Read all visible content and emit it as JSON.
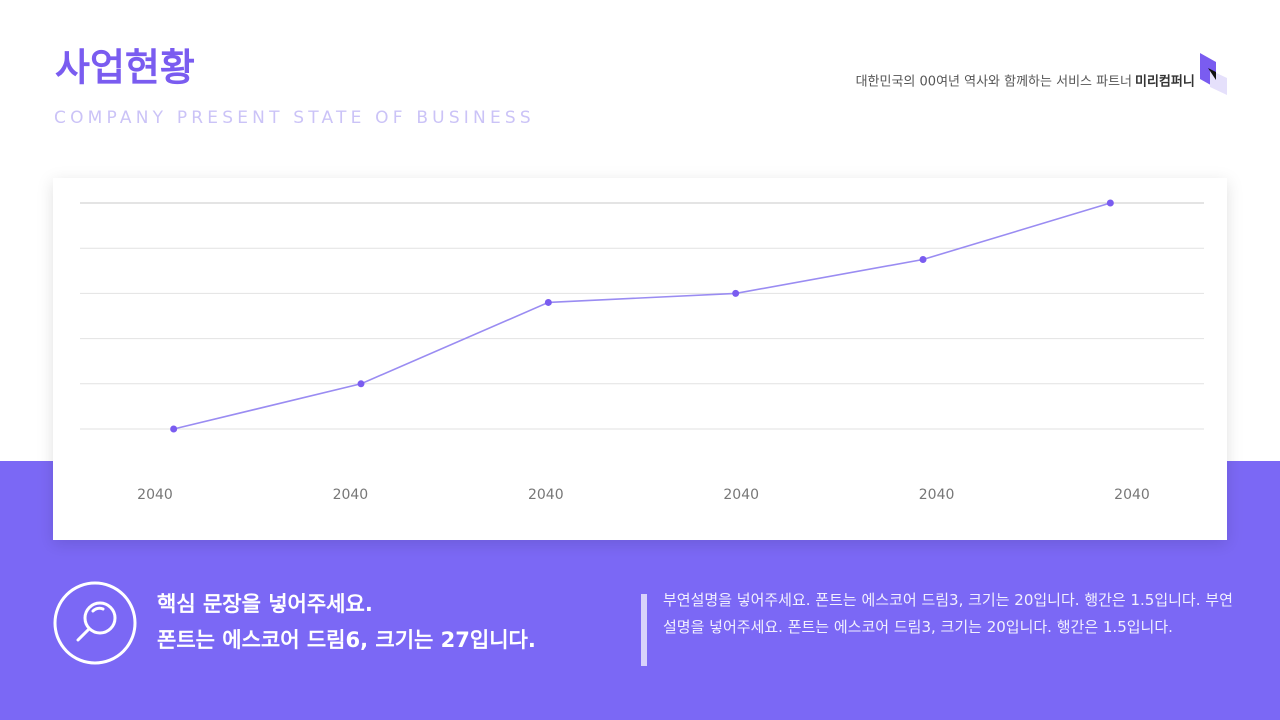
{
  "header": {
    "title": "사업현황",
    "subtitle": "COMPANY PRESENT STATE OF BUSINESS",
    "tagline": "대한민국의 00여년 역사와 함께하는 서비스 파트너",
    "company": "미리컴퍼니"
  },
  "chart_data": {
    "type": "line",
    "categories": [
      "2040",
      "2040",
      "2040",
      "2040",
      "2040",
      "2040"
    ],
    "values": [
      0,
      1,
      2.8,
      3,
      3.75,
      5
    ],
    "color": "#9a8cf2",
    "marker_color": "#7a5cf0",
    "ylim": [
      0,
      5
    ],
    "yticks": [
      0,
      1,
      2,
      3,
      4,
      5
    ],
    "grid": true
  },
  "footer": {
    "headline": [
      "핵심 문장을 넣어주세요.",
      "폰트는 에스코어 드림6, 크기는 27입니다."
    ],
    "description": "부연설명을 넣어주세요. 폰트는 에스코어 드림3, 크기는 20입니다. 행간은 1.5입니다. 부연설명을 넣어주세요. 폰트는 에스코어 드림3, 크기는 20입니다. 행간은 1.5입니다."
  }
}
